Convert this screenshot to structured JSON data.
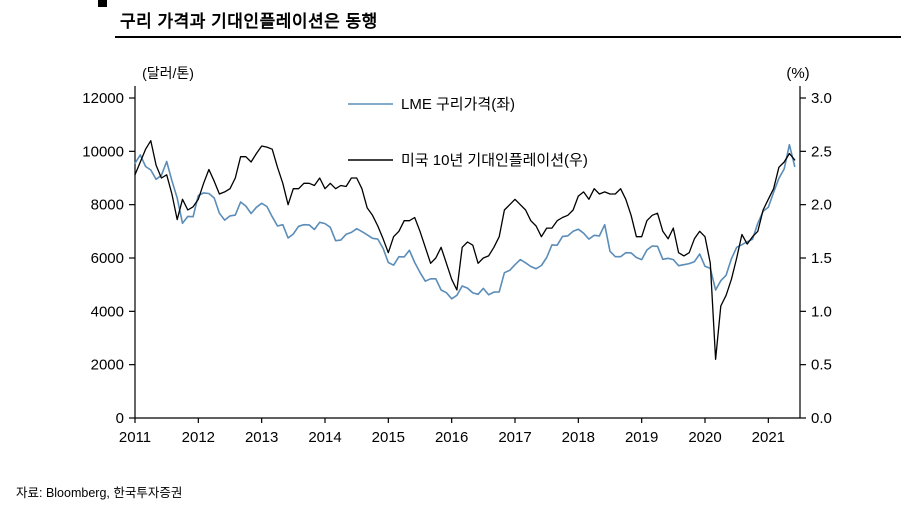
{
  "header": {
    "title": "구리 가격과 기대인플레이션은 동행"
  },
  "footer": {
    "source": "자료: Bloomberg,  한국투자증권"
  },
  "chart_data": {
    "type": "line",
    "title": "구리 가격과 기대인플레이션은 동행",
    "grid": false,
    "legend_position": "top-center-inside",
    "left_axis_unit_label": "(달러/톤)",
    "right_axis_unit_label": "(%)",
    "x_start_year": 2011,
    "x_frequency": "monthly",
    "x_domain": [
      2011,
      2021.5
    ],
    "x_ticks": [
      "2011",
      "2012",
      "2013",
      "2014",
      "2015",
      "2016",
      "2017",
      "2018",
      "2019",
      "2020",
      "2021"
    ],
    "y_left_ticks": [
      "0",
      "2000",
      "4000",
      "6000",
      "8000",
      "10000",
      "12000"
    ],
    "y_right_ticks": [
      "0.0",
      "0.5",
      "1.0",
      "1.5",
      "2.0",
      "2.5",
      "3.0"
    ],
    "axis_color": "#000000",
    "series": [
      {
        "name": "LME 구리가격(좌)",
        "axis": "left",
        "color": "#5b8db8",
        "stroke_width": 1.6,
        "unit": "달러/톤",
        "ylim": [
          0,
          12000
        ],
        "values": [
          9555,
          9867,
          9430,
          9300,
          8950,
          9100,
          9620,
          8900,
          8250,
          7300,
          7560,
          7550,
          8340,
          8440,
          8420,
          8250,
          7680,
          7420,
          7580,
          7610,
          8100,
          7950,
          7670,
          7900,
          8050,
          7930,
          7550,
          7200,
          7250,
          6750,
          6900,
          7190,
          7250,
          7240,
          7070,
          7340,
          7290,
          7150,
          6650,
          6670,
          6890,
          6960,
          7100,
          6990,
          6870,
          6740,
          6710,
          6360,
          5830,
          5730,
          6050,
          6040,
          6290,
          5830,
          5460,
          5130,
          5220,
          5220,
          4800,
          4700,
          4470,
          4600,
          4950,
          4870,
          4690,
          4640,
          4860,
          4620,
          4720,
          4730,
          5450,
          5540,
          5750,
          5940,
          5820,
          5680,
          5600,
          5720,
          6020,
          6490,
          6480,
          6810,
          6830,
          7000,
          7080,
          6930,
          6710,
          6850,
          6830,
          7250,
          6250,
          6050,
          6050,
          6200,
          6190,
          6020,
          5940,
          6300,
          6450,
          6440,
          5950,
          5990,
          5940,
          5710,
          5750,
          5790,
          5860,
          6150,
          5690,
          5610,
          4800,
          5150,
          5350,
          5970,
          6400,
          6500,
          6610,
          6700,
          7300,
          7750,
          7900,
          8460,
          8990,
          9340,
          10250,
          9440
        ]
      },
      {
        "name": "미국 10년 기대인플레이션(우)",
        "axis": "right",
        "color": "#000000",
        "stroke_width": 1.3,
        "unit": "%",
        "ylim": [
          0,
          3.0
        ],
        "values": [
          2.28,
          2.4,
          2.52,
          2.6,
          2.37,
          2.25,
          2.28,
          2.1,
          1.86,
          2.05,
          1.95,
          1.98,
          2.05,
          2.2,
          2.33,
          2.22,
          2.1,
          2.12,
          2.15,
          2.25,
          2.45,
          2.45,
          2.4,
          2.48,
          2.55,
          2.54,
          2.52,
          2.35,
          2.2,
          2.0,
          2.15,
          2.15,
          2.2,
          2.2,
          2.18,
          2.25,
          2.15,
          2.2,
          2.15,
          2.18,
          2.17,
          2.25,
          2.25,
          2.15,
          1.97,
          1.9,
          1.8,
          1.68,
          1.55,
          1.7,
          1.75,
          1.85,
          1.85,
          1.88,
          1.75,
          1.6,
          1.45,
          1.5,
          1.6,
          1.45,
          1.3,
          1.2,
          1.6,
          1.65,
          1.62,
          1.45,
          1.5,
          1.52,
          1.6,
          1.7,
          1.95,
          2.0,
          2.05,
          2.0,
          1.95,
          1.85,
          1.8,
          1.7,
          1.78,
          1.78,
          1.85,
          1.88,
          1.9,
          1.95,
          2.08,
          2.12,
          2.05,
          2.15,
          2.1,
          2.12,
          2.1,
          2.1,
          2.15,
          2.05,
          1.9,
          1.7,
          1.7,
          1.85,
          1.9,
          1.92,
          1.75,
          1.68,
          1.78,
          1.55,
          1.52,
          1.55,
          1.68,
          1.75,
          1.7,
          1.45,
          0.55,
          1.05,
          1.15,
          1.3,
          1.5,
          1.72,
          1.63,
          1.7,
          1.75,
          1.95,
          2.05,
          2.15,
          2.35,
          2.4,
          2.48,
          2.42
        ]
      }
    ]
  }
}
